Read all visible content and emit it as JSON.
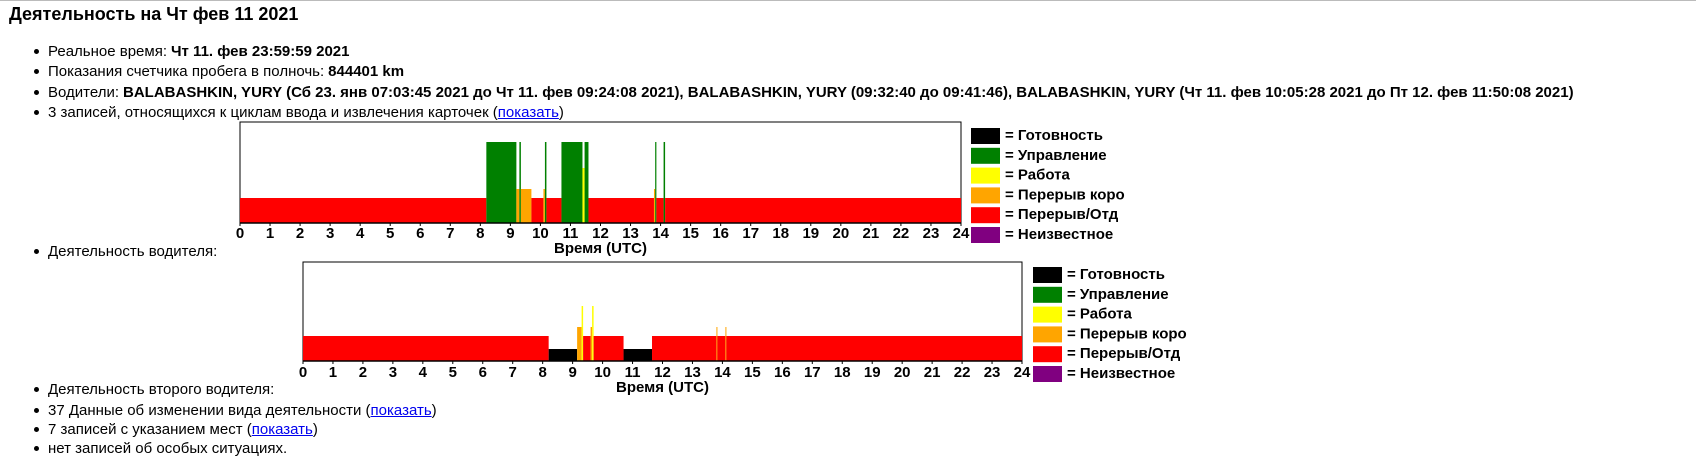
{
  "title": "Деятельность на Чт фев 11 2021",
  "items": [
    {
      "label": "Реальное время:",
      "value": "Чт 11. фев 23:59:59 2021"
    },
    {
      "label": "Показания счетчика пробега в полночь:",
      "value": "844401 km"
    },
    {
      "label": "Водители:",
      "value": "BALABASHKIN, YURY (Сб 23. янв 07:03:45 2021 до Чт 11. фев 09:24:08 2021), BALABASHKIN, YURY (09:32:40 до 09:41:46), BALABASHKIN, YURY (Чт 11. фев 10:05:28 2021 до Пт 12. фев 11:50:08 2021)"
    },
    {
      "before": "3 записей, относящихся к циклам ввода и извлечения карточек (",
      "link": "показать",
      "after": ")"
    },
    {
      "label": "Деятельность водителя:"
    },
    {
      "label": "Деятельность второго водителя:"
    },
    {
      "before": "37 Данные об изменении вида деятельности (",
      "link": "показать",
      "after": ")"
    },
    {
      "before": "7 записей с указанием мест (",
      "link": "показать",
      "after": ")"
    },
    {
      "label": "нет записей об особых ситуациях."
    }
  ],
  "chart_data": [
    {
      "type": "timeline",
      "xlabel": "Время (UTC)",
      "xlim": [
        0,
        24
      ],
      "xticks": [
        0,
        1,
        2,
        3,
        4,
        5,
        6,
        7,
        8,
        9,
        10,
        11,
        12,
        13,
        14,
        15,
        16,
        17,
        18,
        19,
        20,
        21,
        22,
        23,
        24
      ],
      "legend": [
        {
          "name": "= Готовность",
          "color": "#000000"
        },
        {
          "name": "= Управление",
          "color": "#008000"
        },
        {
          "name": "= Работа",
          "color": "#ffff00"
        },
        {
          "name": "= Перерыв коро",
          "color": "#ffa500"
        },
        {
          "name": "= Перерыв/Отд",
          "color": "#ff0000"
        },
        {
          "name": "= Неизвестное",
          "color": "#800080"
        }
      ],
      "segments": [
        {
          "start": 0,
          "end": 8.2,
          "activity": 4
        },
        {
          "start": 8.2,
          "end": 9.2,
          "activity": 1
        },
        {
          "start": 9.2,
          "end": 9.3,
          "activity": 3
        },
        {
          "start": 9.3,
          "end": 9.35,
          "activity": 1
        },
        {
          "start": 9.35,
          "end": 9.7,
          "activity": 3
        },
        {
          "start": 9.7,
          "end": 10.1,
          "activity": 4
        },
        {
          "start": 10.1,
          "end": 10.15,
          "activity": 3
        },
        {
          "start": 10.15,
          "end": 10.2,
          "activity": 1
        },
        {
          "start": 10.2,
          "end": 10.7,
          "activity": 4
        },
        {
          "start": 10.7,
          "end": 11.4,
          "activity": 1
        },
        {
          "start": 11.4,
          "end": 11.47,
          "activity": 2
        },
        {
          "start": 11.47,
          "end": 11.6,
          "activity": 1
        },
        {
          "start": 11.6,
          "end": 13.78,
          "activity": 4
        },
        {
          "start": 13.78,
          "end": 13.82,
          "activity": 3
        },
        {
          "start": 13.82,
          "end": 13.86,
          "activity": 1
        },
        {
          "start": 13.86,
          "end": 14.1,
          "activity": 4
        },
        {
          "start": 14.1,
          "end": 14.15,
          "activity": 1
        },
        {
          "start": 14.15,
          "end": 24,
          "activity": 4
        }
      ]
    },
    {
      "type": "timeline",
      "xlabel": "Время (UTC)",
      "xlim": [
        0,
        24
      ],
      "xticks": [
        0,
        1,
        2,
        3,
        4,
        5,
        6,
        7,
        8,
        9,
        10,
        11,
        12,
        13,
        14,
        15,
        16,
        17,
        18,
        19,
        20,
        21,
        22,
        23,
        24
      ],
      "legend": [
        {
          "name": "= Готовность",
          "color": "#000000"
        },
        {
          "name": "= Управление",
          "color": "#008000"
        },
        {
          "name": "= Работа",
          "color": "#ffff00"
        },
        {
          "name": "= Перерыв коро",
          "color": "#ffa500"
        },
        {
          "name": "= Перерыв/Отд",
          "color": "#ff0000"
        },
        {
          "name": "= Неизвестное",
          "color": "#800080"
        }
      ],
      "segments": [
        {
          "start": 0,
          "end": 8.2,
          "activity": 4
        },
        {
          "start": 8.2,
          "end": 9.15,
          "activity": 0
        },
        {
          "start": 9.15,
          "end": 9.3,
          "activity": 3
        },
        {
          "start": 9.3,
          "end": 9.35,
          "activity": 2
        },
        {
          "start": 9.35,
          "end": 9.6,
          "activity": 4
        },
        {
          "start": 9.6,
          "end": 9.65,
          "activity": 3
        },
        {
          "start": 9.65,
          "end": 9.7,
          "activity": 2
        },
        {
          "start": 9.7,
          "end": 10.7,
          "activity": 4
        },
        {
          "start": 10.7,
          "end": 11.65,
          "activity": 0
        },
        {
          "start": 11.65,
          "end": 13.8,
          "activity": 4
        },
        {
          "start": 13.8,
          "end": 13.83,
          "activity": 3
        },
        {
          "start": 13.83,
          "end": 14.1,
          "activity": 4
        },
        {
          "start": 14.1,
          "end": 14.13,
          "activity": 3
        },
        {
          "start": 14.13,
          "end": 24,
          "activity": 4
        }
      ]
    }
  ]
}
